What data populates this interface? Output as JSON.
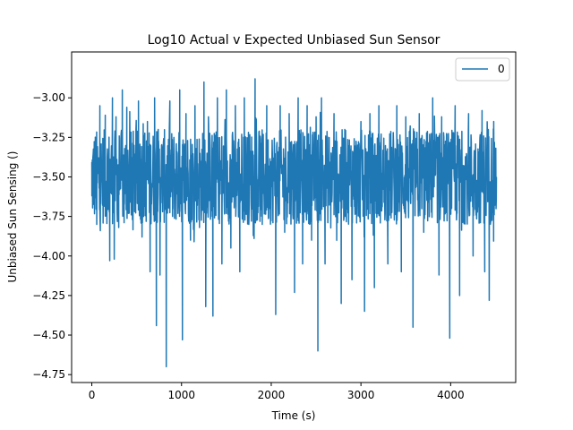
{
  "chart_data": {
    "type": "line",
    "title": "Log10 Actual v Expected Unbiased Sun Sensor",
    "xlabel": "Time (s)",
    "ylabel": "Unbiased Sun Sensing ()",
    "xlim": [
      -225,
      4725
    ],
    "ylim": [
      -4.8,
      -2.71
    ],
    "xticks": [
      0,
      1000,
      2000,
      3000,
      4000
    ],
    "xtick_labels": [
      "0",
      "1000",
      "2000",
      "3000",
      "4000"
    ],
    "yticks": [
      -4.75,
      -4.5,
      -4.25,
      -4.0,
      -3.75,
      -3.5,
      -3.25,
      -3.0
    ],
    "ytick_labels": [
      "−4.75",
      "−4.50",
      "−4.25",
      "−4.00",
      "−3.75",
      "−3.50",
      "−3.25",
      "−3.00"
    ],
    "grid": false,
    "legend": {
      "placement": "top-right",
      "entries": [
        "0"
      ]
    },
    "series": [
      {
        "name": "0",
        "color": "#1f77b4",
        "x_start": 0,
        "x_end": 4510,
        "typical_low": -3.8,
        "typical_high": -3.2,
        "dense_noise": true,
        "extremes": [
          {
            "x": 1,
            "y": -3.62
          },
          {
            "x": 55,
            "y": -3.8
          },
          {
            "x": 90,
            "y": -3.05
          },
          {
            "x": 95,
            "y": -3.84
          },
          {
            "x": 150,
            "y": -3.11
          },
          {
            "x": 200,
            "y": -4.03
          },
          {
            "x": 230,
            "y": -3.0
          },
          {
            "x": 250,
            "y": -4.02
          },
          {
            "x": 270,
            "y": -3.12
          },
          {
            "x": 300,
            "y": -3.82
          },
          {
            "x": 340,
            "y": -2.95
          },
          {
            "x": 360,
            "y": -3.79
          },
          {
            "x": 390,
            "y": -3.06
          },
          {
            "x": 440,
            "y": -3.74
          },
          {
            "x": 520,
            "y": -3.02
          },
          {
            "x": 560,
            "y": -3.88
          },
          {
            "x": 620,
            "y": -3.15
          },
          {
            "x": 650,
            "y": -4.1
          },
          {
            "x": 700,
            "y": -3.0
          },
          {
            "x": 720,
            "y": -4.44
          },
          {
            "x": 740,
            "y": -3.2
          },
          {
            "x": 760,
            "y": -4.12
          },
          {
            "x": 830,
            "y": -4.7
          },
          {
            "x": 870,
            "y": -3.02
          },
          {
            "x": 900,
            "y": -3.75
          },
          {
            "x": 980,
            "y": -2.95
          },
          {
            "x": 1010,
            "y": -4.53
          },
          {
            "x": 1050,
            "y": -3.1
          },
          {
            "x": 1100,
            "y": -3.9
          },
          {
            "x": 1150,
            "y": -3.05
          },
          {
            "x": 1200,
            "y": -3.82
          },
          {
            "x": 1250,
            "y": -2.9
          },
          {
            "x": 1270,
            "y": -4.32
          },
          {
            "x": 1300,
            "y": -3.12
          },
          {
            "x": 1350,
            "y": -4.38
          },
          {
            "x": 1400,
            "y": -3.0
          },
          {
            "x": 1450,
            "y": -4.05
          },
          {
            "x": 1500,
            "y": -2.95
          },
          {
            "x": 1550,
            "y": -3.95
          },
          {
            "x": 1600,
            "y": -3.05
          },
          {
            "x": 1650,
            "y": -4.1
          },
          {
            "x": 1700,
            "y": -3.0
          },
          {
            "x": 1750,
            "y": -3.8
          },
          {
            "x": 1820,
            "y": -2.88
          },
          {
            "x": 1900,
            "y": -3.8
          },
          {
            "x": 1950,
            "y": -3.05
          },
          {
            "x": 2050,
            "y": -4.37
          },
          {
            "x": 2100,
            "y": -3.05
          },
          {
            "x": 2150,
            "y": -3.85
          },
          {
            "x": 2200,
            "y": -3.1
          },
          {
            "x": 2260,
            "y": -4.23
          },
          {
            "x": 2300,
            "y": -3.0
          },
          {
            "x": 2350,
            "y": -4.05
          },
          {
            "x": 2400,
            "y": -3.05
          },
          {
            "x": 2450,
            "y": -3.9
          },
          {
            "x": 2500,
            "y": -3.12
          },
          {
            "x": 2520,
            "y": -4.6
          },
          {
            "x": 2560,
            "y": -3.0
          },
          {
            "x": 2600,
            "y": -4.05
          },
          {
            "x": 2700,
            "y": -3.1
          },
          {
            "x": 2780,
            "y": -4.3
          },
          {
            "x": 2820,
            "y": -3.2
          },
          {
            "x": 2900,
            "y": -4.15
          },
          {
            "x": 3000,
            "y": -3.15
          },
          {
            "x": 3040,
            "y": -4.35
          },
          {
            "x": 3100,
            "y": -3.1
          },
          {
            "x": 3150,
            "y": -4.2
          },
          {
            "x": 3200,
            "y": -3.05
          },
          {
            "x": 3300,
            "y": -4.05
          },
          {
            "x": 3400,
            "y": -3.05
          },
          {
            "x": 3450,
            "y": -4.1
          },
          {
            "x": 3500,
            "y": -3.12
          },
          {
            "x": 3580,
            "y": -4.45
          },
          {
            "x": 3650,
            "y": -3.1
          },
          {
            "x": 3700,
            "y": -3.85
          },
          {
            "x": 3800,
            "y": -3.0
          },
          {
            "x": 3870,
            "y": -4.12
          },
          {
            "x": 3900,
            "y": -3.12
          },
          {
            "x": 3990,
            "y": -4.52
          },
          {
            "x": 4050,
            "y": -3.05
          },
          {
            "x": 4100,
            "y": -4.25
          },
          {
            "x": 4200,
            "y": -3.1
          },
          {
            "x": 4250,
            "y": -4.0
          },
          {
            "x": 4350,
            "y": -3.08
          },
          {
            "x": 4380,
            "y": -4.1
          },
          {
            "x": 4420,
            "y": -3.2
          },
          {
            "x": 4430,
            "y": -4.28
          },
          {
            "x": 4480,
            "y": -3.15
          },
          {
            "x": 4500,
            "y": -3.62
          },
          {
            "x": 4510,
            "y": -3.5
          }
        ]
      }
    ]
  }
}
